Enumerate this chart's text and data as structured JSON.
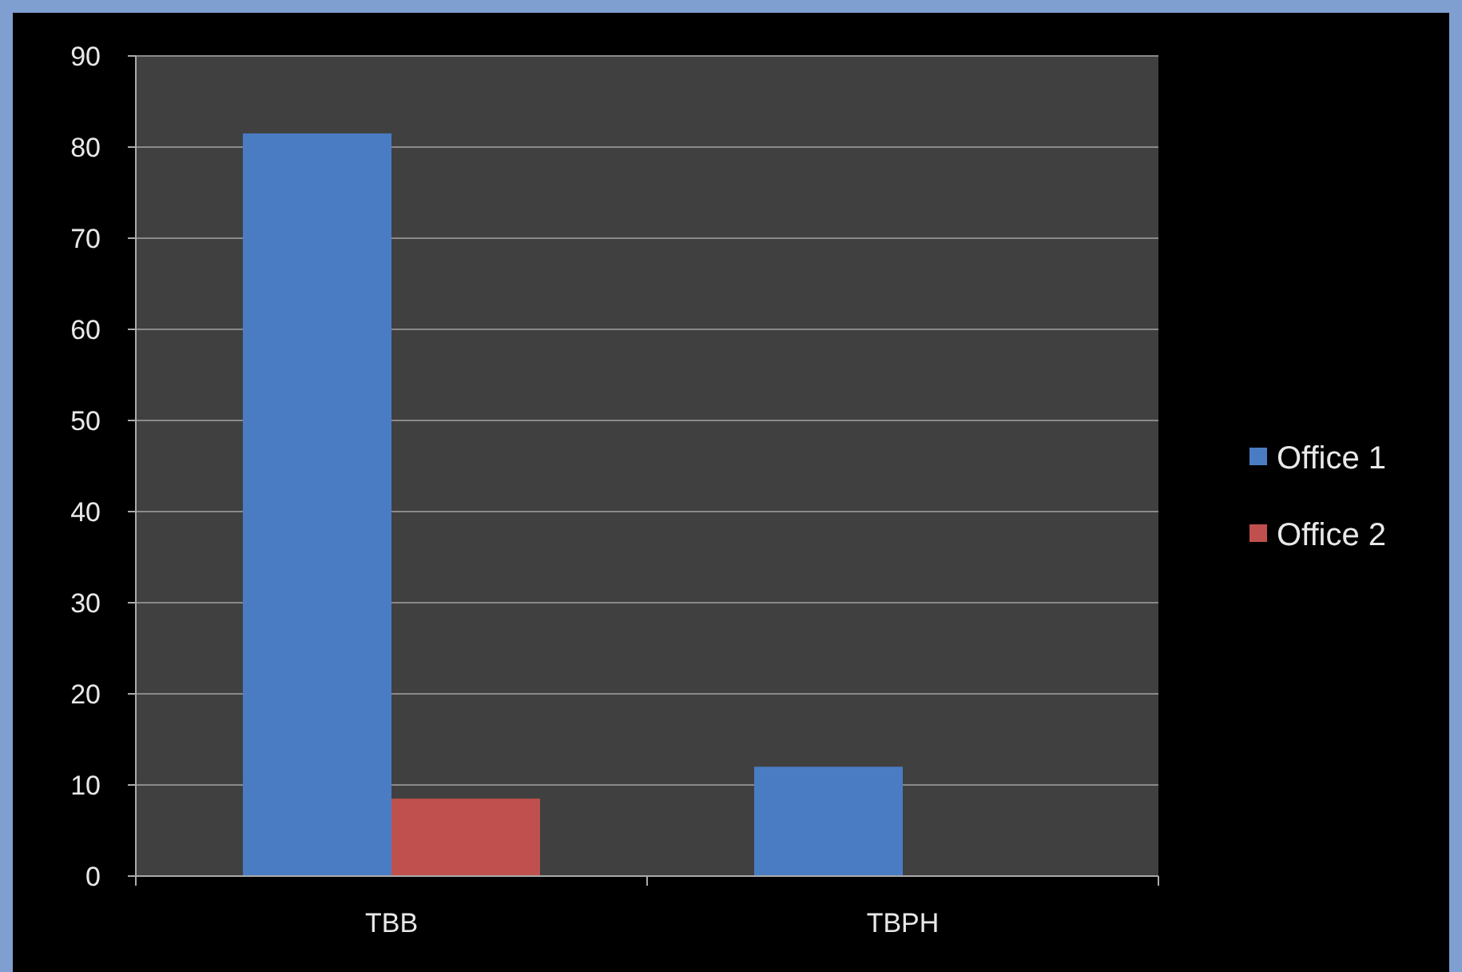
{
  "chart_data": {
    "type": "bar",
    "categories": [
      "TBB",
      "TBPH"
    ],
    "series": [
      {
        "name": "Office 1",
        "color": "#4a7cc4",
        "values": [
          81.5,
          12
        ]
      },
      {
        "name": "Office 2",
        "color": "#c0504d",
        "values": [
          8.5,
          null
        ]
      }
    ],
    "ylim": [
      0,
      90
    ],
    "yticks": [
      0,
      10,
      20,
      30,
      40,
      50,
      60,
      70,
      80,
      90
    ],
    "grid": "y",
    "legend": "right"
  }
}
